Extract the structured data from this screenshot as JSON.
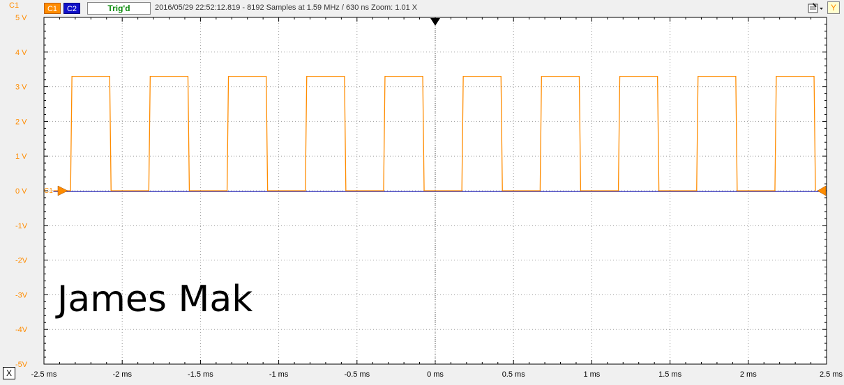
{
  "toolbar": {
    "channel_axis_label": "C1",
    "c1_label": "C1",
    "c2_label": "C2",
    "trigger_status": "Trig'd",
    "acquisition_info": "2016/05/29 22:52:12.819 - 8192 Samples at 1.59 MHz / 630 ns Zoom: 1.01 X",
    "y_button_label": "Y"
  },
  "x_button_label": "X",
  "signature_text": "James Mak",
  "colors": {
    "ch1": "#ff8c00",
    "ch2": "#1a1ab4",
    "plot_background": "#ffffff",
    "grid": "#9a9a9a",
    "window_background": "#f0f0f0"
  },
  "chart_data": {
    "type": "line",
    "x_unit": "ms",
    "y_unit": "V",
    "xlim": [
      -2.5,
      2.5
    ],
    "ylim": [
      -5,
      5
    ],
    "x_tick_labels": [
      "-2.5 ms",
      "-2 ms",
      "-1.5 ms",
      "-1 ms",
      "-0.5 ms",
      "0 ms",
      "0.5 ms",
      "1 ms",
      "1.5 ms",
      "2 ms",
      "2.5 ms"
    ],
    "y_tick_labels": [
      "5 V",
      "4 V",
      "3 V",
      "2 V",
      "1 V",
      "0 V",
      "-1V",
      "-2V",
      "-3V",
      "-4V",
      "-5V"
    ],
    "grid": true,
    "trigger_position_ms": 0,
    "ch1_offset_marker_label": "C1",
    "series": [
      {
        "name": "C1",
        "shape": "square",
        "low_v": 0,
        "high_v": 3.3,
        "period_ms": 0.5,
        "duty": 0.5,
        "first_rising_edge_ms": -2.33
      },
      {
        "name": "C2",
        "shape": "flat",
        "level_v": 0
      }
    ]
  }
}
